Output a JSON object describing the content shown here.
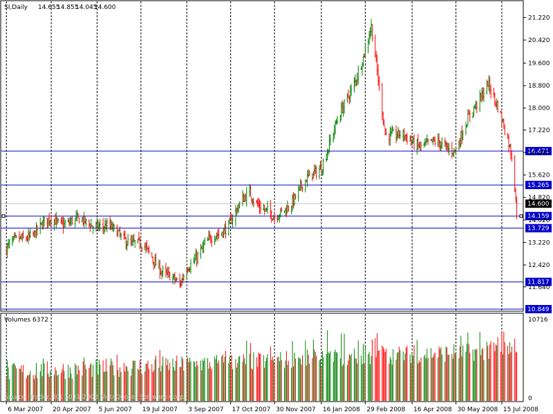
{
  "chart_data": {
    "type": "line",
    "chart_style": "bar-ohlc",
    "header": {
      "symbol_label": "SI,Daily",
      "ohlc": [
        "14.655",
        "14.855",
        "14.045",
        "14.600"
      ]
    },
    "price_axis": {
      "ticks": [
        "21.220",
        "20.420",
        "19.600",
        "18.800",
        "18.000",
        "17.220",
        "16.420",
        "15.620",
        "14.820",
        "14.020",
        "13.220",
        "12.420",
        "11.640"
      ],
      "range": [
        10.849,
        21.6
      ]
    },
    "current_price": "14.600",
    "levels": [
      "16.471",
      "15.265",
      "14.159",
      "13.729",
      "11.817",
      "10.849"
    ],
    "selected_level": "14.159",
    "dates": [
      "6 Mar 2007",
      "20 Apr 2007",
      "5 Jun 2007",
      "19 Jul 2007",
      "3 Sep 2007",
      "17 Oct 2007",
      "30 Nov 2007",
      "16 Jan 2008",
      "29 Feb 2008",
      "16 Apr 2008",
      "30 May 2008",
      "15 Jul 2008"
    ],
    "anchors": [
      {
        "date": "6 Mar 2007",
        "close": 13.0
      },
      {
        "date": "20 Apr 2007",
        "close": 14.0
      },
      {
        "date": "5 Jun 2007",
        "close": 13.9
      },
      {
        "date": "19 Jul 2007",
        "close": 13.1
      },
      {
        "date": "27 Aug 2007",
        "close": 11.6
      },
      {
        "date": "3 Sep 2007",
        "close": 12.4
      },
      {
        "date": "17 Oct 2007",
        "close": 14.0
      },
      {
        "date": "5 Nov 2007",
        "close": 15.0
      },
      {
        "date": "30 Nov 2007",
        "close": 14.0
      },
      {
        "date": "16 Jan 2008",
        "close": 16.0
      },
      {
        "date": "29 Feb 2008",
        "close": 20.0
      },
      {
        "date": "6 Mar 2008",
        "close": 20.8
      },
      {
        "date": "20 Mar 2008",
        "close": 17.2
      },
      {
        "date": "16 Apr 2008",
        "close": 16.8
      },
      {
        "date": "30 May 2008",
        "close": 16.6
      },
      {
        "date": "1 Jul 2008",
        "close": 19.0
      },
      {
        "date": "15 Jul 2008",
        "close": 17.5
      },
      {
        "date": "25 Jul 2008",
        "close": 16.4
      },
      {
        "date": "30 Jul 2008",
        "close": 14.6
      }
    ],
    "volume": {
      "label": "Volumes 6372",
      "max_label": "10716",
      "zero_label": "0",
      "max": 10716,
      "latest": 6372
    },
    "colors": {
      "up": "#008000",
      "down": "#ff0000",
      "level_line": "#0000cc",
      "label_bg": "#0000cc",
      "current_bg": "#000000",
      "grid": "#000000"
    },
    "watermark": "Source: Trader, (C) 2001-2008 MetaQuotes Software Corp."
  }
}
